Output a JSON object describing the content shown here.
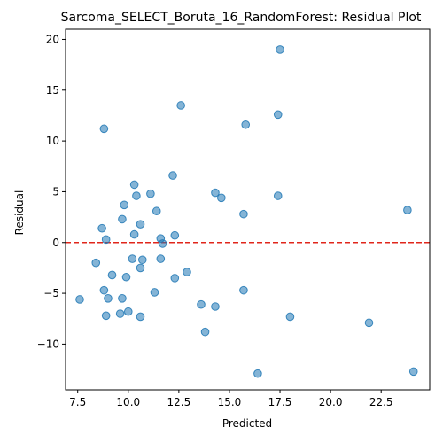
{
  "chart_data": {
    "type": "scatter",
    "title": "Sarcoma_SELECT_Boruta_16_RandomForest: Residual Plot",
    "xlabel": "Predicted",
    "ylabel": "Residual",
    "xlim": [
      6.9,
      24.9
    ],
    "ylim": [
      -14.5,
      21.0
    ],
    "xticks": [
      "7.5",
      "10.0",
      "12.5",
      "15.0",
      "17.5",
      "20.0",
      "22.5"
    ],
    "yticks": [
      "-10",
      "-5",
      "0",
      "5",
      "10",
      "15",
      "20"
    ],
    "xtick_values": [
      7.5,
      10.0,
      12.5,
      15.0,
      17.5,
      20.0,
      22.5
    ],
    "ytick_values": [
      -10,
      -5,
      0,
      5,
      10,
      15,
      20
    ],
    "grid": false,
    "reference_line": {
      "y": 0,
      "style": "dashed",
      "color": "#e0261b"
    },
    "point_color": "#1f77b4",
    "points": [
      {
        "x": 17.5,
        "y": 19.0
      },
      {
        "x": 12.6,
        "y": 13.5
      },
      {
        "x": 17.4,
        "y": 12.6
      },
      {
        "x": 15.8,
        "y": 11.6
      },
      {
        "x": 8.8,
        "y": 11.2
      },
      {
        "x": 12.2,
        "y": 6.6
      },
      {
        "x": 10.3,
        "y": 5.7
      },
      {
        "x": 14.3,
        "y": 4.9
      },
      {
        "x": 11.1,
        "y": 4.8
      },
      {
        "x": 10.4,
        "y": 4.6
      },
      {
        "x": 17.4,
        "y": 4.6
      },
      {
        "x": 14.6,
        "y": 4.4
      },
      {
        "x": 9.8,
        "y": 3.7
      },
      {
        "x": 23.8,
        "y": 3.2
      },
      {
        "x": 11.4,
        "y": 3.1
      },
      {
        "x": 15.7,
        "y": 2.8
      },
      {
        "x": 9.7,
        "y": 2.3
      },
      {
        "x": 10.6,
        "y": 1.8
      },
      {
        "x": 8.7,
        "y": 1.4
      },
      {
        "x": 10.3,
        "y": 0.8
      },
      {
        "x": 12.3,
        "y": 0.7
      },
      {
        "x": 11.6,
        "y": 0.4
      },
      {
        "x": 8.9,
        "y": 0.3
      },
      {
        "x": 11.7,
        "y": -0.1
      },
      {
        "x": 10.2,
        "y": -1.6
      },
      {
        "x": 10.7,
        "y": -1.7
      },
      {
        "x": 11.6,
        "y": -1.6
      },
      {
        "x": 8.4,
        "y": -2.0
      },
      {
        "x": 10.6,
        "y": -2.5
      },
      {
        "x": 12.9,
        "y": -2.9
      },
      {
        "x": 9.2,
        "y": -3.2
      },
      {
        "x": 9.9,
        "y": -3.4
      },
      {
        "x": 12.3,
        "y": -3.5
      },
      {
        "x": 8.8,
        "y": -4.7
      },
      {
        "x": 15.7,
        "y": -4.7
      },
      {
        "x": 11.3,
        "y": -4.9
      },
      {
        "x": 9.0,
        "y": -5.5
      },
      {
        "x": 9.7,
        "y": -5.5
      },
      {
        "x": 7.6,
        "y": -5.6
      },
      {
        "x": 13.6,
        "y": -6.1
      },
      {
        "x": 14.3,
        "y": -6.3
      },
      {
        "x": 10.0,
        "y": -6.8
      },
      {
        "x": 9.6,
        "y": -7.0
      },
      {
        "x": 8.9,
        "y": -7.2
      },
      {
        "x": 10.6,
        "y": -7.3
      },
      {
        "x": 18.0,
        "y": -7.3
      },
      {
        "x": 21.9,
        "y": -7.9
      },
      {
        "x": 13.8,
        "y": -8.8
      },
      {
        "x": 24.1,
        "y": -12.7
      },
      {
        "x": 16.4,
        "y": -12.9
      }
    ]
  }
}
